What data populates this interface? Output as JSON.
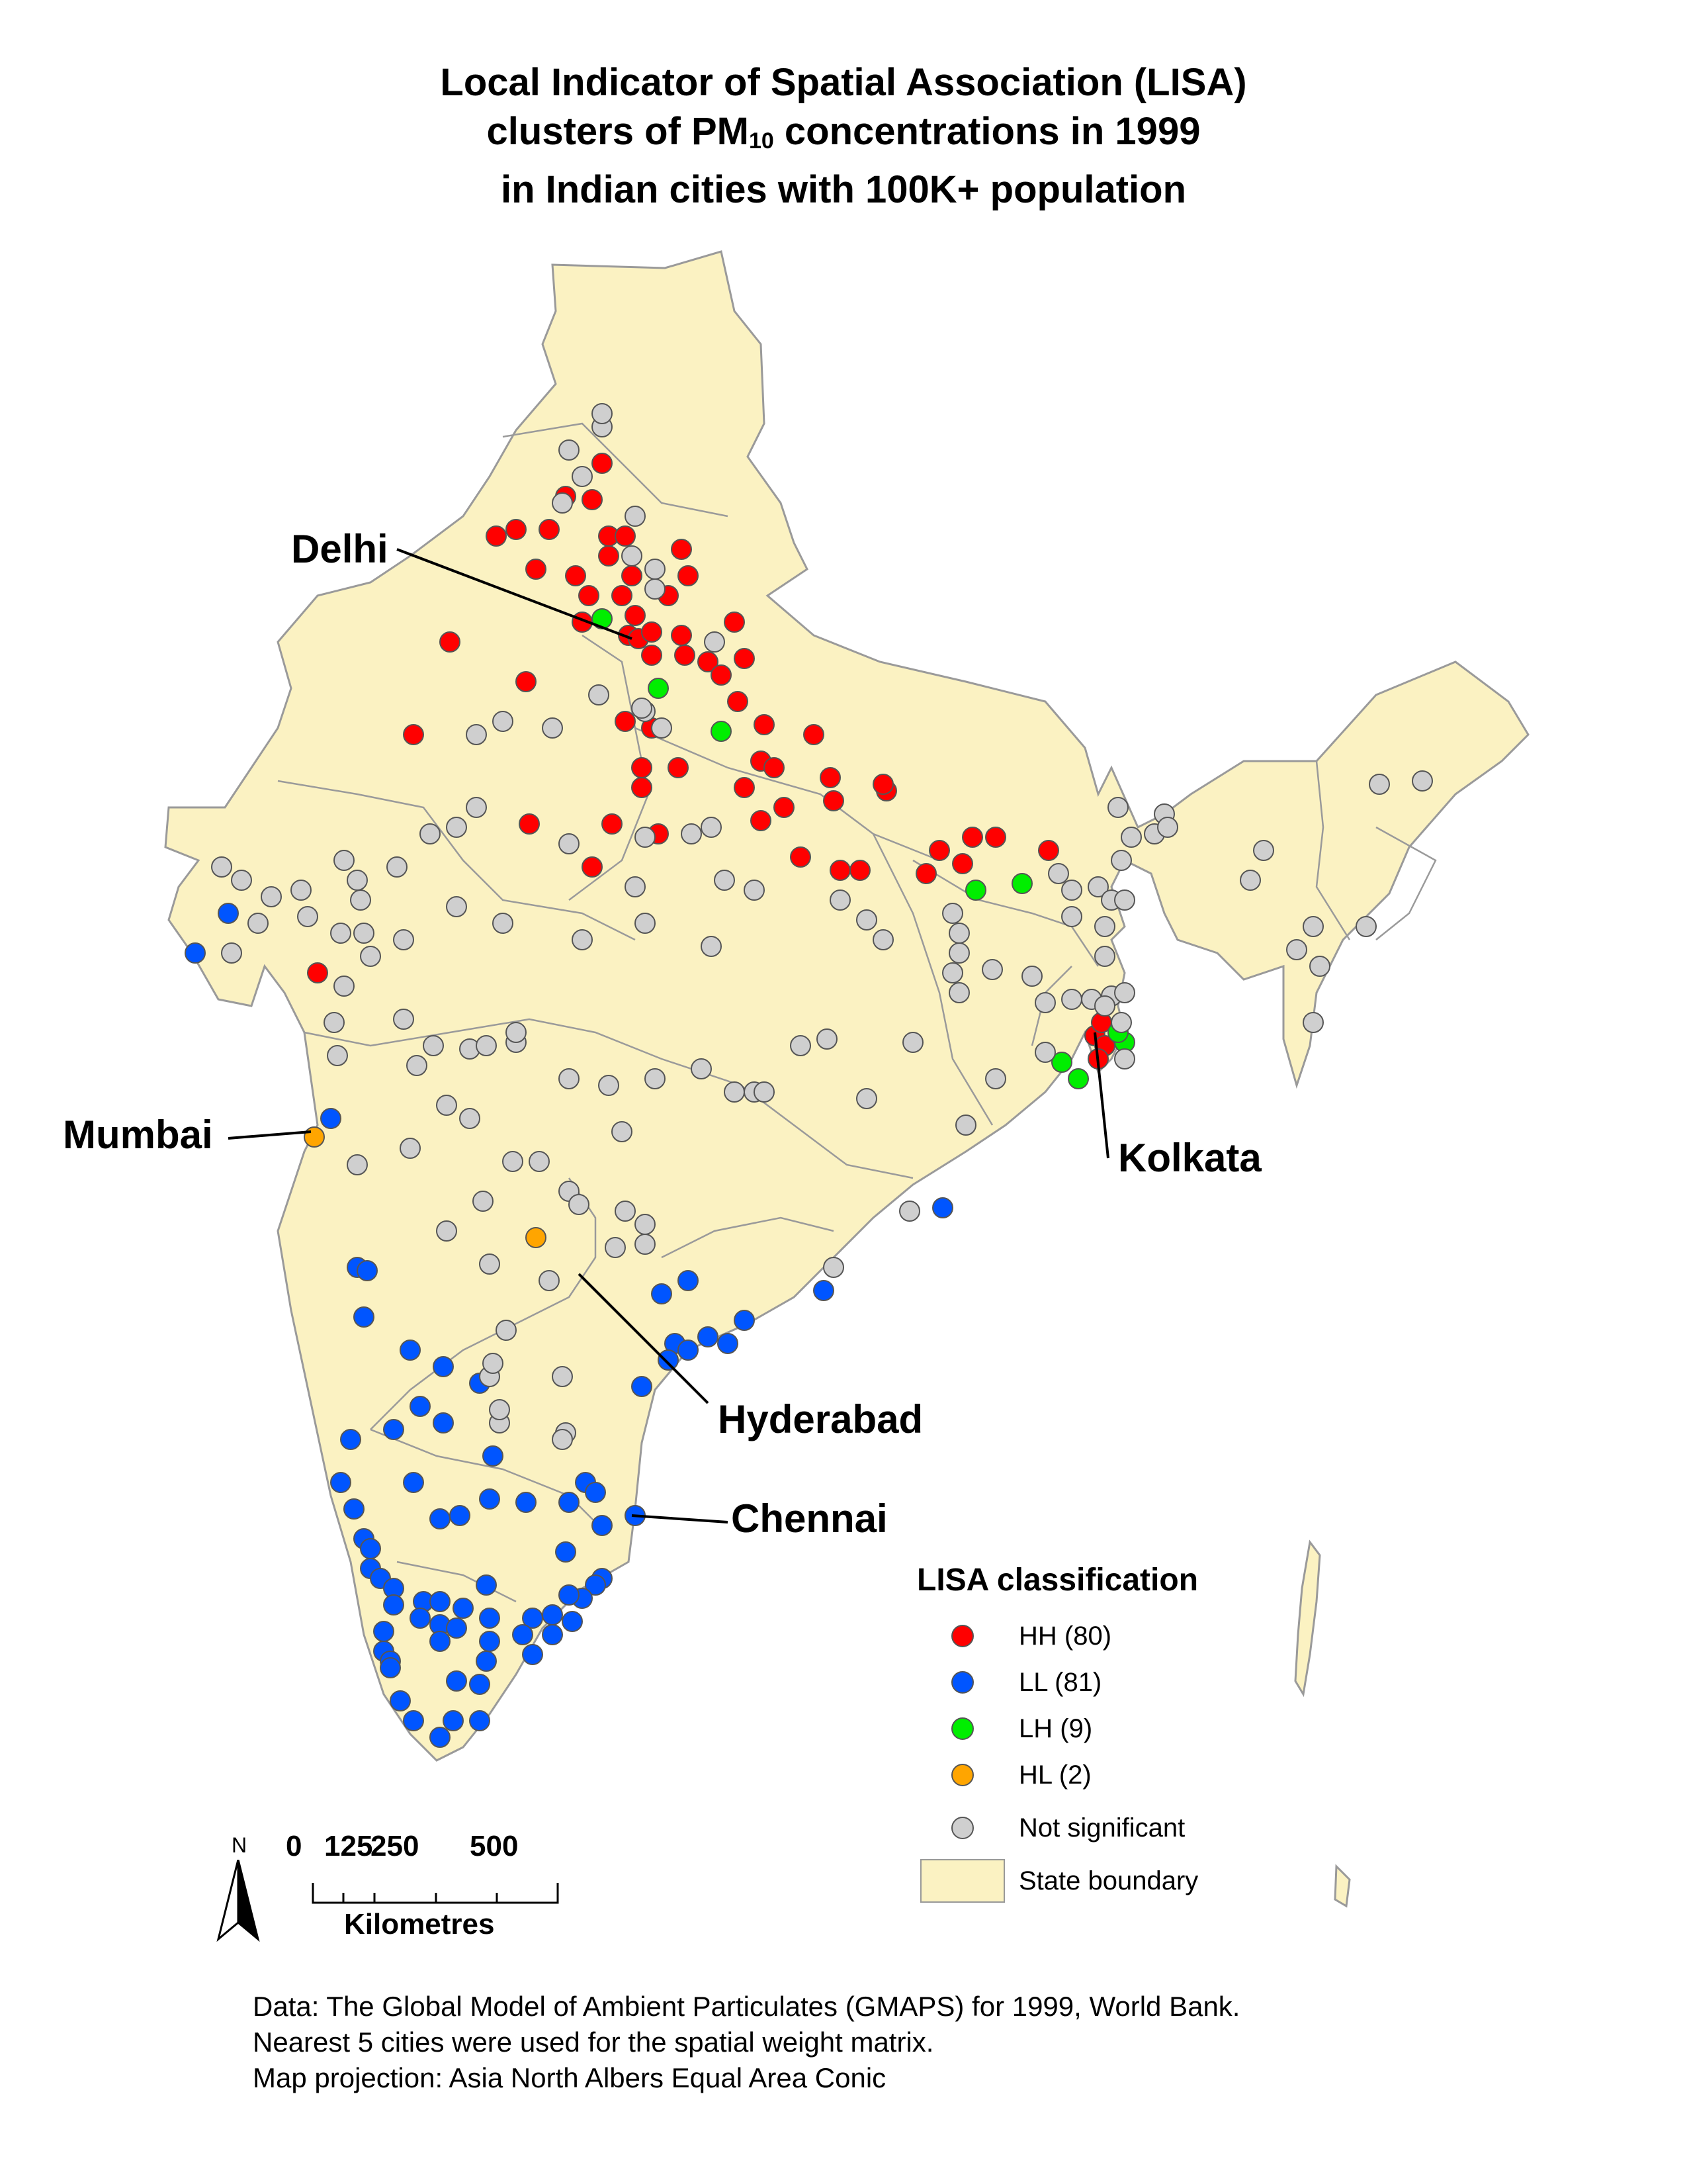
{
  "title": {
    "line1": "Local Indicator of Spatial Association (LISA)",
    "line2_before": "clusters of PM",
    "line2_sub": "10",
    "line2_after": " concentrations in 1999",
    "line3": "in Indian cities with 100K+ population"
  },
  "labels": {
    "delhi": "Delhi",
    "mumbai": "Mumbai",
    "kolkata": "Kolkata",
    "hyderabad": "Hyderabad",
    "chennai": "Chennai"
  },
  "legend": {
    "title": "LISA classification",
    "items": [
      {
        "label": "HH (80)",
        "color": "#ff0000"
      },
      {
        "label": "LL (81)",
        "color": "#0055ff"
      },
      {
        "label": "LH (9)",
        "color": "#00ee00"
      },
      {
        "label": "HL (2)",
        "color": "#ffa500"
      },
      {
        "label": "Not significant",
        "color": "#cfcfcf"
      }
    ],
    "boundary_label": "State boundary",
    "boundary_color": "#fbf2c2"
  },
  "scale_bar": {
    "ticks": [
      "0",
      "125",
      "250",
      "500"
    ],
    "unit": "Kilometres"
  },
  "north_arrow": "N",
  "credits": [
    "Data: The Global Model of Ambient Particulates (GMAPS) for 1999, World Bank.",
    "Nearest 5 cities were used for the spatial weight matrix.",
    "Map projection: Asia North Albers Equal Area Conic"
  ]
}
